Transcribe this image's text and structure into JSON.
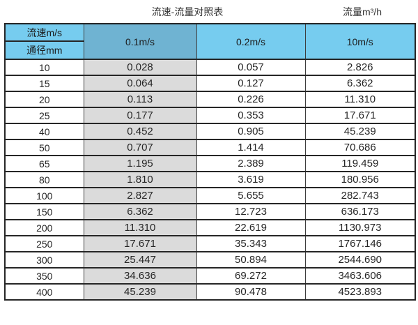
{
  "header": {
    "title": "流速-流量对照表",
    "unit_label": "流量m³/h"
  },
  "table": {
    "corner_top": "流速m/s",
    "corner_bottom": "通径mm",
    "velocity_headers": [
      "0.1m/s",
      "0.2m/s",
      "10m/s"
    ],
    "rows": [
      {
        "diameter": "10",
        "values": [
          "0.028",
          "0.057",
          "2.826"
        ]
      },
      {
        "diameter": "15",
        "values": [
          "0.064",
          "0.127",
          "6.362"
        ]
      },
      {
        "diameter": "20",
        "values": [
          "0.113",
          "0.226",
          "11.310"
        ]
      },
      {
        "diameter": "25",
        "values": [
          "0.177",
          "0.353",
          "17.671"
        ]
      },
      {
        "diameter": "40",
        "values": [
          "0.452",
          "0.905",
          "45.239"
        ]
      },
      {
        "diameter": "50",
        "values": [
          "0.707",
          "1.414",
          "70.686"
        ]
      },
      {
        "diameter": "65",
        "values": [
          "1.195",
          "2.389",
          "119.459"
        ]
      },
      {
        "diameter": "80",
        "values": [
          "1.810",
          "3.619",
          "180.956"
        ]
      },
      {
        "diameter": "100",
        "values": [
          "2.827",
          "5.655",
          "282.743"
        ]
      },
      {
        "diameter": "150",
        "values": [
          "6.362",
          "12.723",
          "636.173"
        ]
      },
      {
        "diameter": "200",
        "values": [
          "11.310",
          "22.619",
          "1130.973"
        ]
      },
      {
        "diameter": "250",
        "values": [
          "17.671",
          "35.343",
          "1767.146"
        ]
      },
      {
        "diameter": "300",
        "values": [
          "25.447",
          "50.894",
          "2544.690"
        ]
      },
      {
        "diameter": "350",
        "values": [
          "34.636",
          "69.272",
          "3463.606"
        ]
      },
      {
        "diameter": "400",
        "values": [
          "45.239",
          "90.478",
          "4523.893"
        ]
      }
    ]
  },
  "colors": {
    "header_blue_light": "#76CCEF",
    "header_blue_dark": "#6FB3D2",
    "shaded_column_gray": "#DBDBDB",
    "border_dark": "#262626",
    "text_dark": "#262626"
  },
  "chart_data": {
    "type": "table",
    "title": "流速-流量对照表",
    "right_caption": "流量m³/h",
    "row_axis_label": "通径mm",
    "col_axis_label": "流速m/s",
    "columns": [
      "0.1m/s",
      "0.2m/s",
      "10m/s"
    ],
    "diameters_mm": [
      10,
      15,
      20,
      25,
      40,
      50,
      65,
      80,
      100,
      150,
      200,
      250,
      300,
      350,
      400
    ],
    "values": [
      [
        0.028,
        0.057,
        2.826
      ],
      [
        0.064,
        0.127,
        6.362
      ],
      [
        0.113,
        0.226,
        11.31
      ],
      [
        0.177,
        0.353,
        17.671
      ],
      [
        0.452,
        0.905,
        45.239
      ],
      [
        0.707,
        1.414,
        70.686
      ],
      [
        1.195,
        2.389,
        119.459
      ],
      [
        1.81,
        3.619,
        180.956
      ],
      [
        2.827,
        5.655,
        282.743
      ],
      [
        6.362,
        12.723,
        636.173
      ],
      [
        11.31,
        22.619,
        1130.973
      ],
      [
        17.671,
        35.343,
        1767.146
      ],
      [
        25.447,
        50.894,
        2544.69
      ],
      [
        34.636,
        69.272,
        3463.606
      ],
      [
        45.239,
        90.478,
        4523.893
      ]
    ],
    "units": "m³/h"
  }
}
